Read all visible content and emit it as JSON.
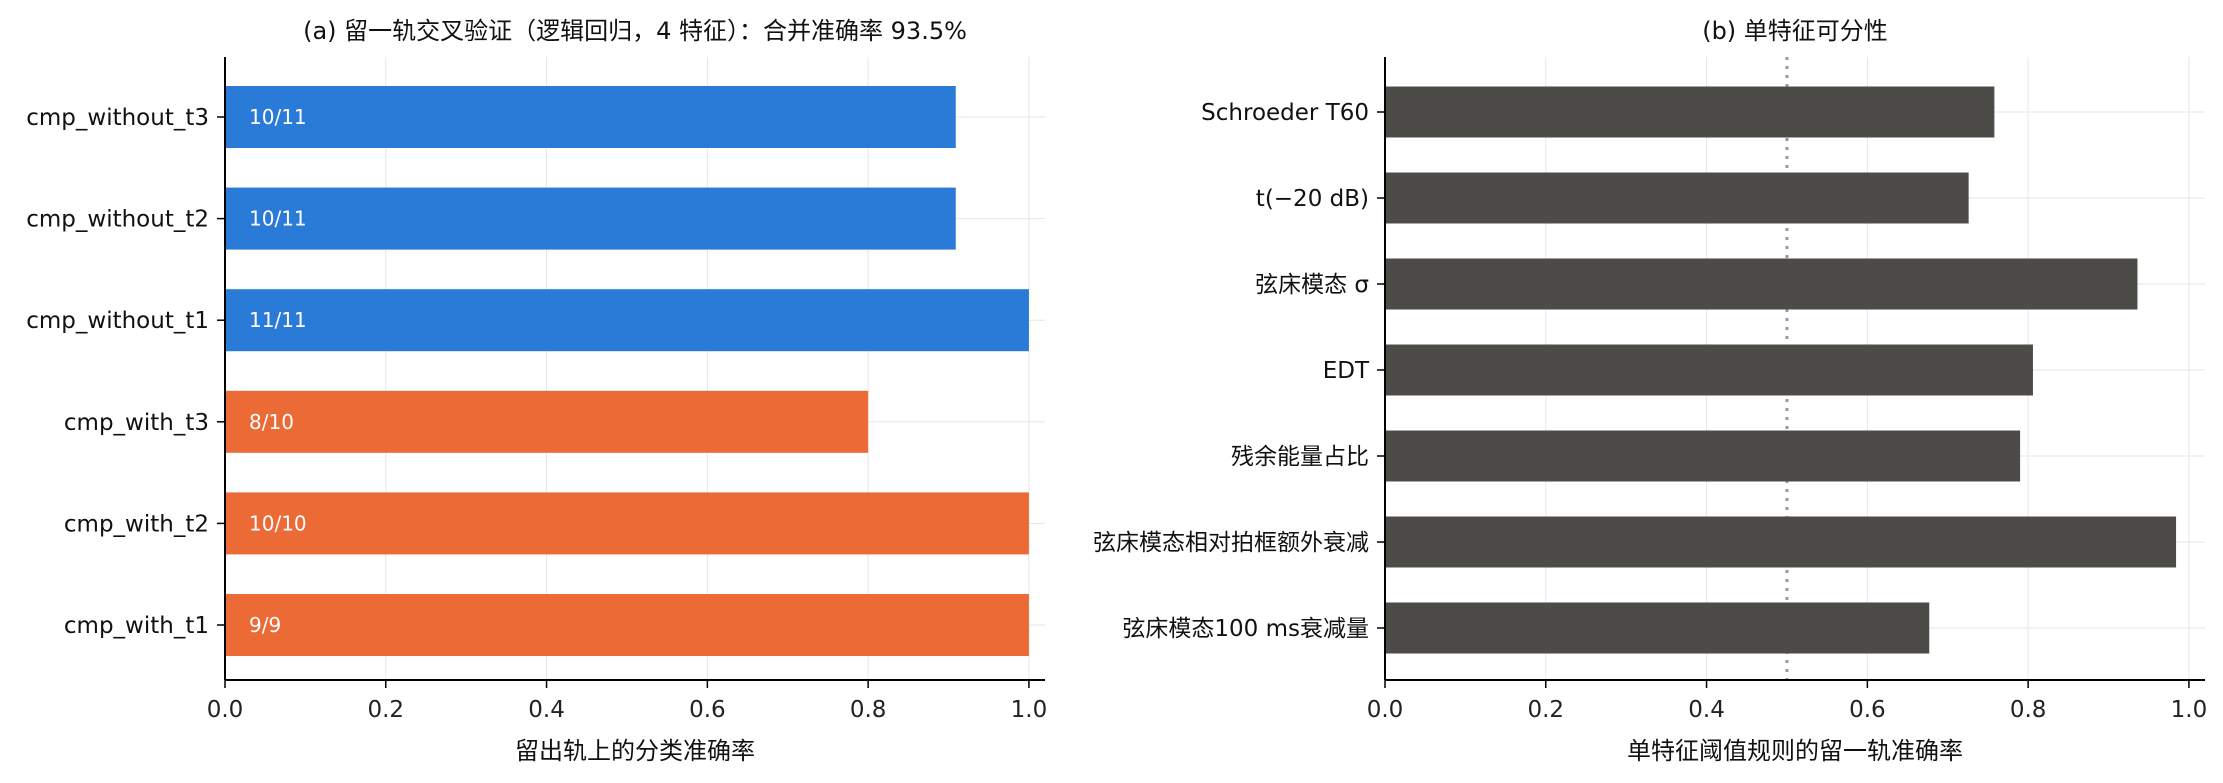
{
  "chart_data": [
    {
      "type": "bar",
      "orientation": "horizontal",
      "title": "(a) 留一轨交叉验证（逻辑回归，4 特征）：合并准确率 93.5%",
      "xlabel": "留出轨上的分类准确率",
      "ylabel": "",
      "xlim": [
        0,
        1.02
      ],
      "xticks": [
        "0.0",
        "0.2",
        "0.4",
        "0.6",
        "0.8",
        "1.0"
      ],
      "grid": true,
      "categories": [
        "cmp_without_t3",
        "cmp_without_t2",
        "cmp_without_t1",
        "cmp_with_t3",
        "cmp_with_t2",
        "cmp_with_t1"
      ],
      "values": [
        0.909,
        0.909,
        1.0,
        0.8,
        1.0,
        1.0
      ],
      "bar_labels": [
        "10/11",
        "10/11",
        "11/11",
        "8/10",
        "10/10",
        "9/9"
      ],
      "colors": [
        "#2a7ad8",
        "#2a7ad8",
        "#2a7ad8",
        "#eb6a36",
        "#eb6a36",
        "#eb6a36"
      ]
    },
    {
      "type": "bar",
      "orientation": "horizontal",
      "title": "(b) 单特征可分性",
      "xlabel": "单特征阈值规则的留一轨准确率",
      "ylabel": "",
      "xlim": [
        0,
        1.02
      ],
      "xticks": [
        "0.0",
        "0.2",
        "0.4",
        "0.6",
        "0.8",
        "1.0"
      ],
      "grid": true,
      "categories": [
        "Schroeder T60",
        "t(−20 dB)",
        "弦床模态 σ",
        "EDT",
        "残余能量占比",
        "弦床模态相对拍框额外衰减",
        "弦床模态100 ms衰减量"
      ],
      "values": [
        0.758,
        0.726,
        0.936,
        0.806,
        0.79,
        0.984,
        0.677
      ],
      "reference_line": 0.5,
      "colors": [
        "#4d4b47"
      ]
    }
  ]
}
